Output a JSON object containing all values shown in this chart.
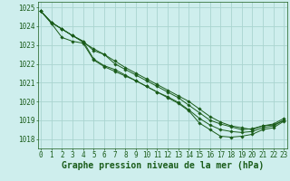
{
  "background_color": "#ceeeed",
  "grid_color": "#aad4d0",
  "line_color": "#1a5c1a",
  "marker_color": "#1a5c1a",
  "xlabel": "Graphe pression niveau de la mer (hPa)",
  "xlabel_fontsize": 7.0,
  "tick_fontsize": 5.5,
  "ylim": [
    1017.5,
    1025.3
  ],
  "xlim": [
    -0.3,
    23.3
  ],
  "yticks": [
    1018,
    1019,
    1020,
    1021,
    1022,
    1023,
    1024,
    1025
  ],
  "xticks": [
    0,
    1,
    2,
    3,
    4,
    5,
    6,
    7,
    8,
    9,
    10,
    11,
    12,
    13,
    14,
    15,
    16,
    17,
    18,
    19,
    20,
    21,
    22,
    23
  ],
  "series": [
    [
      1024.8,
      1024.2,
      1023.85,
      1023.5,
      1023.2,
      1022.7,
      1022.5,
      1022.0,
      1021.7,
      1021.4,
      1021.1,
      1020.8,
      1020.5,
      1020.2,
      1019.8,
      1019.4,
      1019.0,
      1018.8,
      1018.65,
      1018.5,
      1018.55,
      1018.7,
      1018.75,
      1019.0
    ],
    [
      1024.8,
      1024.2,
      1023.85,
      1023.5,
      1023.15,
      1022.8,
      1022.5,
      1022.15,
      1021.8,
      1021.5,
      1021.2,
      1020.9,
      1020.6,
      1020.3,
      1020.0,
      1019.6,
      1019.2,
      1018.9,
      1018.7,
      1018.6,
      1018.5,
      1018.7,
      1018.8,
      1019.1
    ],
    [
      1024.8,
      1024.2,
      1023.85,
      1023.5,
      1023.2,
      1022.25,
      1021.9,
      1021.7,
      1021.4,
      1021.1,
      1020.8,
      1020.5,
      1020.25,
      1019.95,
      1019.55,
      1019.1,
      1018.75,
      1018.5,
      1018.4,
      1018.35,
      1018.4,
      1018.6,
      1018.7,
      1019.0
    ],
    [
      1024.8,
      1024.15,
      1023.4,
      1023.2,
      1023.1,
      1022.2,
      1021.85,
      1021.6,
      1021.35,
      1021.1,
      1020.8,
      1020.5,
      1020.2,
      1019.9,
      1019.5,
      1018.85,
      1018.5,
      1018.15,
      1018.1,
      1018.15,
      1018.25,
      1018.5,
      1018.6,
      1018.95
    ]
  ]
}
